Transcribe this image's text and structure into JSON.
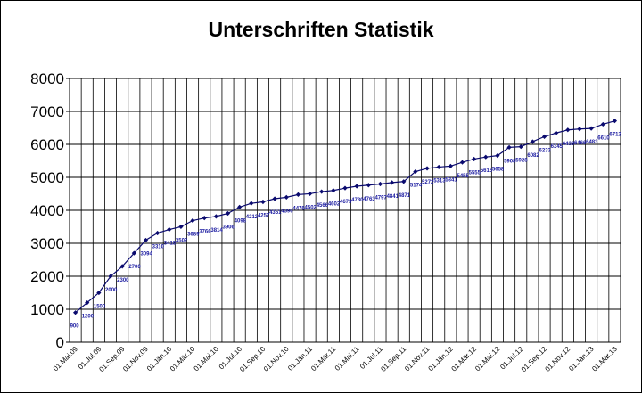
{
  "chart_data": {
    "type": "line",
    "title": "Unterschriften Statistik",
    "xlabel": "",
    "ylabel": "",
    "ylim": [
      0,
      8000
    ],
    "yticks": [
      0,
      1000,
      2000,
      3000,
      4000,
      5000,
      6000,
      7000,
      8000
    ],
    "grid": true,
    "legend": "none",
    "color": "#0a0a6e",
    "x_tick_labels": [
      "01.Mai.09",
      "01.Jul.09",
      "01.Sep.09",
      "01.Nov.09",
      "01.Jän.10",
      "01.Mär.10",
      "01.Mai.10",
      "01.Jul.10",
      "01.Sep.10",
      "01.Nov.10",
      "01.Jän.11",
      "01.Mär.11",
      "01.Mai.11",
      "01.Jul.11",
      "01.Sep.11",
      "01.Nov.11",
      "01.Jän.12",
      "01.Mär.12",
      "01.Mai.12",
      "01.Jul.12",
      "01.Sep.12",
      "01.Nov.12",
      "01.Jän.13",
      "01.Mär.13"
    ],
    "values": [
      900,
      1200,
      1500,
      2000,
      2300,
      2700,
      3094,
      3310,
      3418,
      3502,
      3689,
      3766,
      3814,
      3906,
      4098,
      4212,
      4257,
      4351,
      4396,
      4476,
      4502,
      4566,
      4602,
      4673,
      4730,
      4763,
      4797,
      4841,
      4871,
      5174,
      5272,
      5313,
      5341,
      5455,
      5555,
      5616,
      5658,
      5908,
      5928,
      6082,
      6233,
      6345,
      6439,
      6466,
      6483,
      6610,
      6712
    ],
    "labels": [
      "900",
      "1200",
      "1500",
      "2000",
      "2300",
      "2700",
      "3094",
      "3310",
      "3418",
      "3502",
      "3689",
      "3766",
      "3814",
      "3906",
      "4098",
      "4212",
      "4257",
      "4351",
      "4396",
      "4476",
      "4502",
      "4566",
      "4602",
      "4673",
      "4730",
      "4763",
      "4797",
      "4841",
      "4871",
      "5174",
      "5272",
      "5313",
      "5341",
      "5455",
      "5555",
      "5616",
      "5658",
      "5908",
      "5928",
      "6082",
      "6233",
      "6345",
      "6439",
      "6466",
      "6483",
      "6610",
      "6712"
    ]
  }
}
